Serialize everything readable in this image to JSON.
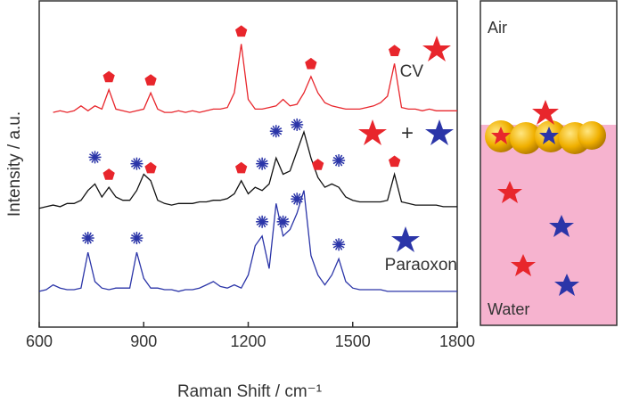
{
  "chart_data": {
    "type": "line",
    "x_label": "Raman Shift / cm⁻¹",
    "y_label": "Intensity / a.u.",
    "x": [
      600,
      620,
      640,
      660,
      680,
      700,
      720,
      740,
      760,
      780,
      800,
      820,
      840,
      860,
      880,
      900,
      920,
      940,
      960,
      980,
      1000,
      1020,
      1040,
      1060,
      1080,
      1100,
      1120,
      1140,
      1160,
      1180,
      1200,
      1220,
      1240,
      1260,
      1280,
      1300,
      1320,
      1340,
      1360,
      1380,
      1400,
      1420,
      1440,
      1460,
      1480,
      1500,
      1520,
      1540,
      1560,
      1580,
      1600,
      1620,
      1640,
      1660,
      1680,
      1700,
      1720,
      1740,
      1760,
      1780,
      1800
    ],
    "series": [
      {
        "name": "CV",
        "color": "#e8262c",
        "values": [
          null,
          null,
          66,
          66.5,
          66,
          66.5,
          68,
          66.5,
          68,
          67,
          73,
          67,
          66.5,
          66,
          66.5,
          67,
          72,
          67,
          66,
          66,
          66.5,
          66,
          66.5,
          66,
          66.5,
          67,
          67,
          67.5,
          72,
          87,
          70,
          67,
          67,
          67.5,
          68,
          70,
          68,
          68.5,
          72,
          77,
          72,
          69,
          68,
          67.5,
          67,
          67,
          67,
          67.5,
          68,
          69,
          71,
          81,
          67.5,
          67,
          67,
          66.5,
          67,
          66.5,
          66.5,
          66.5,
          66.5
        ],
        "pentagon_x": [
          800,
          920,
          1180,
          1380,
          1620
        ],
        "asterisk_x": []
      },
      {
        "name": "+",
        "color": "#111111",
        "values": [
          36.5,
          37,
          37.5,
          37,
          38,
          38,
          39,
          42,
          44,
          40,
          43,
          40,
          39,
          39,
          42,
          47,
          45,
          39,
          38,
          37.5,
          38,
          38,
          38,
          38.5,
          38.5,
          39,
          39,
          39.5,
          41,
          45,
          41,
          43,
          42,
          44,
          52,
          47,
          48,
          54,
          60,
          52,
          46,
          43,
          44,
          43,
          40,
          39,
          38.5,
          38.5,
          38.5,
          38.5,
          39,
          47,
          38.5,
          38,
          37.5,
          37.5,
          37.5,
          37.5,
          37,
          37,
          37
        ],
        "pentagon_x": [
          800,
          920,
          1180,
          1400,
          1620
        ],
        "asterisk_x": [
          760,
          880,
          1240,
          1280,
          1340,
          1460
        ]
      },
      {
        "name": "Paraoxon",
        "color": "#2b35a8",
        "values": [
          11,
          11.5,
          13,
          12,
          11.5,
          11.5,
          12,
          23,
          14,
          12,
          11.5,
          12,
          12,
          12,
          23,
          15,
          12,
          12,
          11.5,
          11.5,
          11,
          11.5,
          11.5,
          12,
          13,
          14,
          12.5,
          12,
          13,
          12,
          16,
          25,
          28,
          18,
          38,
          28,
          30,
          35,
          42,
          22,
          16,
          13,
          16,
          21,
          14,
          12,
          11.5,
          11.5,
          11.5,
          11.5,
          11,
          11,
          11,
          11,
          11,
          11,
          11,
          11,
          11,
          11,
          11
        ],
        "pentagon_x": [],
        "asterisk_x": [
          740,
          880,
          1240,
          1300,
          1340,
          1460
        ]
      }
    ],
    "xlim": [
      600,
      1800
    ],
    "xticks": [
      600,
      900,
      1200,
      1500,
      1800
    ],
    "ylim": [
      0,
      100
    ],
    "panel": {
      "top_label": "Air",
      "bottom_label": "Water"
    }
  }
}
